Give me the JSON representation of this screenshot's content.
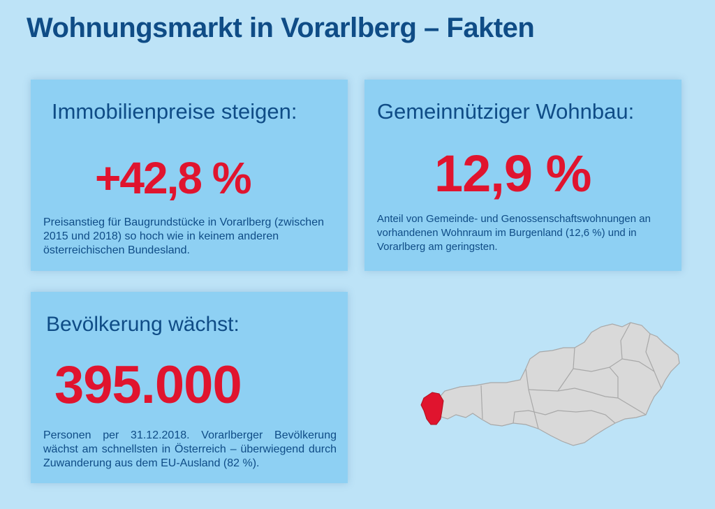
{
  "title": "Wohnungsmarkt in Vorarlberg – Fakten",
  "cards": {
    "prices": {
      "heading": "Immobilienpreise steigen:",
      "value": "+42,8 %",
      "description": "Preisanstieg für Baugrundstücke in Vorarlberg (zwischen 2015 und 2018) so hoch wie in keinem anderen österreichischen Bundesland."
    },
    "housing": {
      "heading": "Gemeinnütziger Wohnbau:",
      "value": "12,9 %",
      "description": "Anteil von Gemeinde- und Genossenschaftswohnungen an vorhandenen Wohnraum im Burgenland (12,6 %) und in Vorarlberg am geringsten."
    },
    "population": {
      "heading": "Bevölkerung wächst:",
      "value": "395.000",
      "description": "Personen per 31.12.2018. Vorarlberger Bevölkerung wächst am schnellsten in Österreich – überwiegend durch Zuwanderung aus dem EU-Ausland (82 %)."
    }
  },
  "map": {
    "highlight_color": "#e0142e",
    "base_color": "#d9d9d9",
    "border_color": "#a8a8a8"
  }
}
